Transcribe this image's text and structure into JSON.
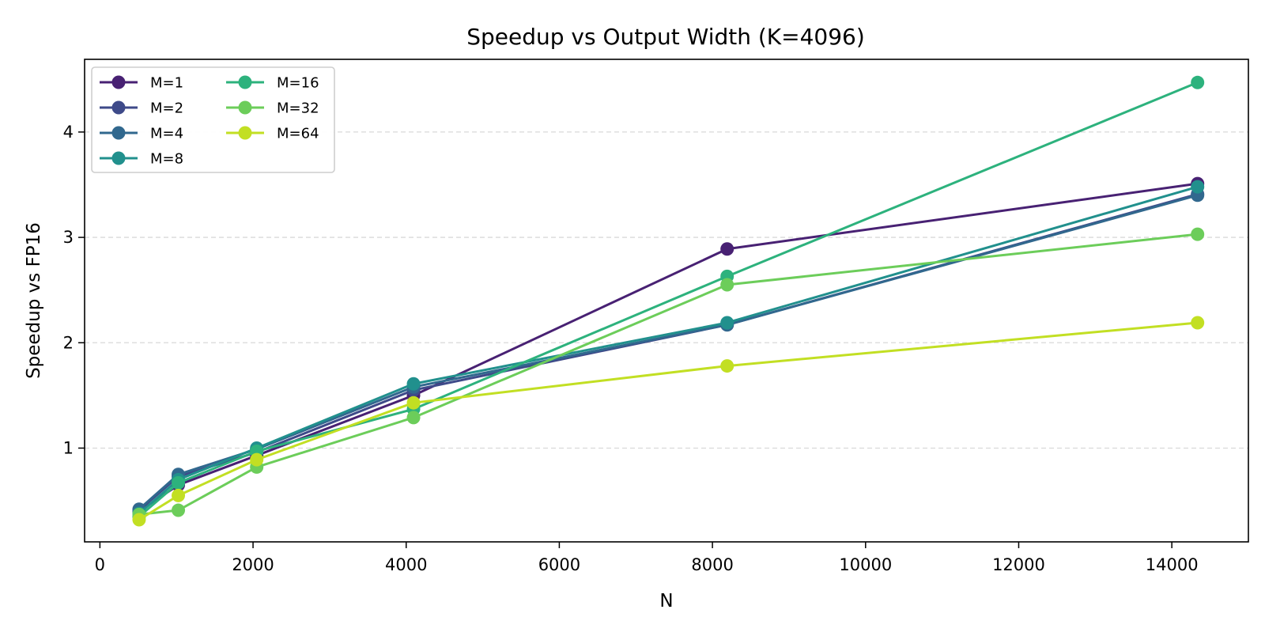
{
  "chart_data": {
    "type": "line",
    "title": "Speedup vs Output Width (K=4096)",
    "xlabel": "N",
    "ylabel": "Speedup vs FP16",
    "x": [
      512,
      1024,
      2048,
      4096,
      8192,
      14336
    ],
    "xlim": [
      -200,
      15000
    ],
    "ylim": [
      0.11,
      4.69
    ],
    "x_ticks": [
      0,
      2000,
      4000,
      6000,
      8000,
      10000,
      12000,
      14000
    ],
    "y_ticks": [
      1,
      2,
      3,
      4
    ],
    "grid": "horizontal dashed",
    "legend": {
      "position": "top-left",
      "columns": 2
    },
    "series": [
      {
        "name": "M=1",
        "color": "#482173",
        "values": [
          0.4,
          0.65,
          0.93,
          1.5,
          2.89,
          3.51
        ]
      },
      {
        "name": "M=2",
        "color": "#3e4a89",
        "values": [
          0.41,
          0.73,
          0.96,
          1.55,
          2.17,
          3.41
        ]
      },
      {
        "name": "M=4",
        "color": "#31688e",
        "values": [
          0.42,
          0.75,
          0.99,
          1.58,
          2.17,
          3.4
        ]
      },
      {
        "name": "M=8",
        "color": "#21908d",
        "values": [
          0.38,
          0.7,
          1.0,
          1.61,
          2.19,
          3.48
        ]
      },
      {
        "name": "M=16",
        "color": "#2db27d",
        "values": [
          0.35,
          0.67,
          0.97,
          1.37,
          2.63,
          4.47
        ]
      },
      {
        "name": "M=32",
        "color": "#6ccd5a",
        "values": [
          0.37,
          0.41,
          0.82,
          1.29,
          2.55,
          3.03
        ]
      },
      {
        "name": "M=64",
        "color": "#c2df23",
        "values": [
          0.32,
          0.55,
          0.89,
          1.43,
          1.78,
          2.19
        ]
      }
    ]
  }
}
